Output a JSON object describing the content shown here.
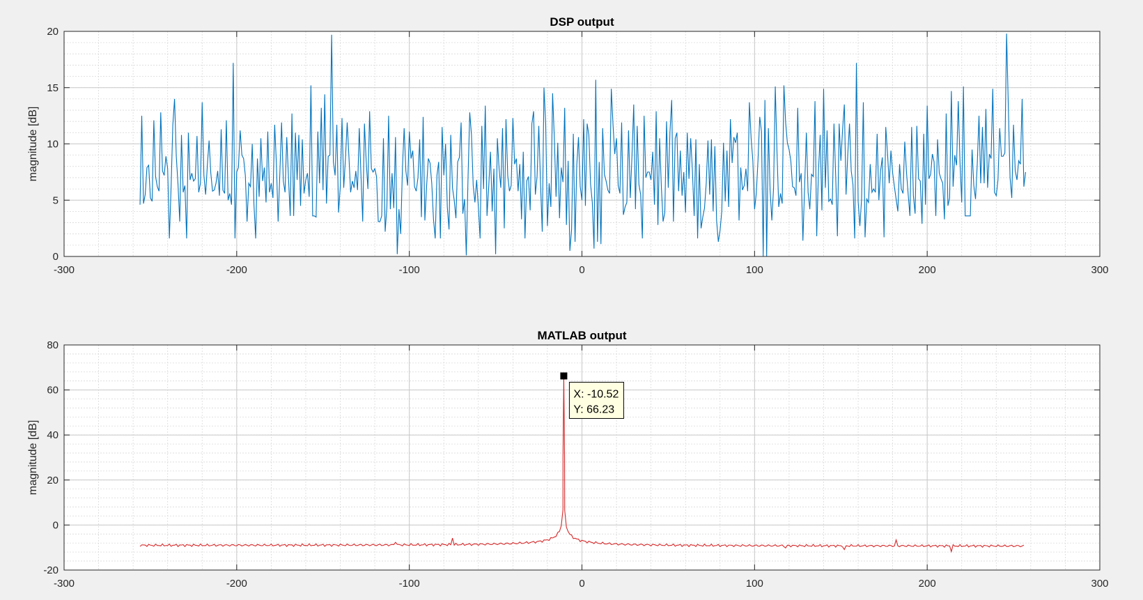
{
  "chart_data": [
    {
      "type": "line",
      "title": "DSP output",
      "xlabel": "",
      "ylabel": "magnitude [dB]",
      "xlim": [
        -300,
        300
      ],
      "ylim": [
        0,
        20
      ],
      "xticks": [
        -300,
        -200,
        -100,
        0,
        100,
        200,
        300
      ],
      "yticks": [
        0,
        5,
        10,
        15,
        20
      ],
      "xtick_labels": [
        "-300",
        "-200",
        "-100",
        "0",
        "100",
        "200",
        "300"
      ],
      "ytick_labels": [
        "0",
        "5",
        "10",
        "15",
        "20"
      ],
      "grid": true,
      "minor_grid": true,
      "line_color": "#0072bd",
      "series": [
        {
          "x_start": -256,
          "x_step": 1,
          "values": [
            4.6,
            12.5,
            4.7,
            5.5,
            7.9,
            8.1,
            5.2,
            4.9,
            12.1,
            7.1,
            6.2,
            5.8,
            12.8,
            7.6,
            7.2,
            8.9,
            7.8,
            1.6,
            6.2,
            11.7,
            14.0,
            8.9,
            6.4,
            3.1,
            10.8,
            5.7,
            6.3,
            1.6,
            11.0,
            6.8,
            7.4,
            6.7,
            6.9,
            10.7,
            5.7,
            6.5,
            13.7,
            7.2,
            5.5,
            8.1,
            10.3,
            7.4,
            5.8,
            5.9,
            6.5,
            7.6,
            5.4,
            11.3,
            5.9,
            5.6,
            12.1,
            5.0,
            5.6,
            4.6,
            17.2,
            1.6,
            7.5,
            7.9,
            11.2,
            9.0,
            8.7,
            7.2,
            3.1,
            6.5,
            6.2,
            10.0,
            4.6,
            1.6,
            8.7,
            5.3,
            10.5,
            6.7,
            7.9,
            4.8,
            11.1,
            5.7,
            6.5,
            5.2,
            11.7,
            8.2,
            3.1,
            7.4,
            11.9,
            6.7,
            5.7,
            10.6,
            7.0,
            3.6,
            12.7,
            3.6,
            11.0,
            6.8,
            10.8,
            4.5,
            10.4,
            5.6,
            6.8,
            7.4,
            5.3,
            15.2,
            3.6,
            3.6,
            3.5,
            11.1,
            6.5,
            13.2,
            5.9,
            14.4,
            4.7,
            8.9,
            9.0,
            19.7,
            8.4,
            7.2,
            11.7,
            3.9,
            6.2,
            12.3,
            6.1,
            8.7,
            11.9,
            8.9,
            5.7,
            6.7,
            6.1,
            7.6,
            5.9,
            11.4,
            7.2,
            3.1,
            11.8,
            8.5,
            6.0,
            12.9,
            7.8,
            7.5,
            7.8,
            7.1,
            3.1,
            3.1,
            3.6,
            10.5,
            2.2,
            4.4,
            12.5,
            4.2,
            7.4,
            4.3,
            10.6,
            0.2,
            4.2,
            2.0,
            7.8,
            11.4,
            7.6,
            6.3,
            11.1,
            8.7,
            9.4,
            6.2,
            5.8,
            7.0,
            10.4,
            3.5,
            12.4,
            3.2,
            6.2,
            8.7,
            8.3,
            6.5,
            3.3,
            1.6,
            7.2,
            8.4,
            1.6,
            11.5,
            7.2,
            10.0,
            4.4,
            2.4,
            10.8,
            6.1,
            5.0,
            3.4,
            8.4,
            8.8,
            11.9,
            3.8,
            5.1,
            0.1,
            6.9,
            12.8,
            10.8,
            6.3,
            4.8,
            6.8,
            4.4,
            1.6,
            11.6,
            6.0,
            13.4,
            3.6,
            6.2,
            9.3,
            4.0,
            7.8,
            0.2,
            10.5,
            7.8,
            6.1,
            11.4,
            2.5,
            12.2,
            7.2,
            5.8,
            6.3,
            12.3,
            8.2,
            8.7,
            5.8,
            8.2,
            3.3,
            9.3,
            1.6,
            6.7,
            7.1,
            4.1,
            11.8,
            12.9,
            5.5,
            7.1,
            11.6,
            6.5,
            2.2,
            15.0,
            11.8,
            2.7,
            6.5,
            4.4,
            14.5,
            10.5,
            5.3,
            10.1,
            3.4,
            7.9,
            6.6,
            13.2,
            2.8,
            8.5,
            0.5,
            2.4,
            10.9,
            1.3,
            8.1,
            10.6,
            6.2,
            5.0,
            12.2,
            4.5,
            11.8,
            10.8,
            6.4,
            4.8,
            0.7,
            15.7,
            1.3,
            8.4,
            1.1,
            11.4,
            7.3,
            6.7,
            5.9,
            5.6,
            14.9,
            11.7,
            9.1,
            10.5,
            6.3,
            5.6,
            11.9,
            3.7,
            4.4,
            4.8,
            11.2,
            5.2,
            9.0,
            13.5,
            4.2,
            11.6,
            6.4,
            5.5,
            1.6,
            12.5,
            7.0,
            7.5,
            7.5,
            6.8,
            9.3,
            4.6,
            12.9,
            2.8,
            10.5,
            6.2,
            3.1,
            3.9,
            12.0,
            6.1,
            11.1,
            13.9,
            3.1,
            10.5,
            11.0,
            5.8,
            9.4,
            5.4,
            7.5,
            3.9,
            11.0,
            6.9,
            10.5,
            7.6,
            3.6,
            10.4,
            1.6,
            8.2,
            2.5,
            3.5,
            4.3,
            6.5,
            10.3,
            5.5,
            10.4,
            4.0,
            9.8,
            3.2,
            1.3,
            2.3,
            4.0,
            10.1,
            4.9,
            9.4,
            4.4,
            12.2,
            8.3,
            10.6,
            10.1,
            11.0,
            3.2,
            7.9,
            5.9,
            6.3,
            7.8,
            5.8,
            13.7,
            10.5,
            8.5,
            4.2,
            5.6,
            8.6,
            12.4,
            11.1,
            0.0,
            13.9,
            0.0,
            11.4,
            5.9,
            3.2,
            6.1,
            15.1,
            9.2,
            4.4,
            5.6,
            4.7,
            15.2,
            11.9,
            10.1,
            9.5,
            8.5,
            6.2,
            6.1,
            5.4,
            13.2,
            6.6,
            7.4,
            1.4,
            6.2,
            11.0,
            5.7,
            4.2,
            7.3,
            7.1,
            13.8,
            1.8,
            7.5,
            10.8,
            4.1,
            14.9,
            6.1,
            11.2,
            4.9,
            5.1,
            4.6,
            11.8,
            7.1,
            1.8,
            11.8,
            8.5,
            11.3,
            13.5,
            5.5,
            9.1,
            11.8,
            7.6,
            6.4,
            1.6,
            17.2,
            4.9,
            2.7,
            5.1,
            13.7,
            1.7,
            5.1,
            4.8,
            8.2,
            5.7,
            6.0,
            5.7,
            10.9,
            5.0,
            7.6,
            8.8,
            1.7,
            11.5,
            9.2,
            6.5,
            9.4,
            7.4,
            6.2,
            5.1,
            4.0,
            8.2,
            6.0,
            5.6,
            10.2,
            7.5,
            5.5,
            3.6,
            11.5,
            5.4,
            3.8,
            11.6,
            6.9,
            6.7,
            2.9,
            10.9,
            4.6,
            13.4,
            6.9,
            7.3,
            9.1,
            8.4,
            3.6,
            10.4,
            7.4,
            6.9,
            6.5,
            3.3,
            12.7,
            4.5,
            5.2,
            14.7,
            6.2,
            9.0,
            8.1,
            13.8,
            8.4,
            4.8,
            15.1,
            3.6,
            3.6,
            3.6,
            3.6,
            9.5,
            6.3,
            5.1,
            8.2,
            12.5,
            6.5,
            11.5,
            6.5,
            13.1,
            6.1,
            9.1,
            8.7,
            14.9,
            5.7,
            5.4,
            6.8,
            11.4,
            8.9,
            8.9,
            9.2,
            19.8,
            13.3,
            7.0,
            5.2,
            11.7,
            7.6,
            6.8,
            8.5,
            8.2,
            14.0,
            6.2,
            7.5
          ]
        }
      ]
    },
    {
      "type": "line",
      "title": "MATLAB output",
      "xlabel": "",
      "ylabel": "magnitude [dB]",
      "xlim": [
        -300,
        300
      ],
      "ylim": [
        -20,
        80
      ],
      "xticks": [
        -300,
        -200,
        -100,
        0,
        100,
        200,
        300
      ],
      "yticks": [
        -20,
        0,
        20,
        40,
        60,
        80
      ],
      "xtick_labels": [
        "-300",
        "-200",
        "-100",
        "0",
        "100",
        "200",
        "300"
      ],
      "ytick_labels": [
        "-20",
        "0",
        "20",
        "40",
        "60",
        "80"
      ],
      "grid": true,
      "minor_grid": true,
      "line_color": "#d62728",
      "series": [
        {
          "shape": "peak",
          "x_range": [
            -256,
            256
          ],
          "peak_x": -10.52,
          "peak_y": 66.23,
          "floor_left": -9,
          "floor_right": -9.3,
          "dips": [
            {
              "x": -108,
              "y": -7.7
            },
            {
              "x": -75,
              "y": -5.8
            },
            {
              "x": 118,
              "y": -10.2
            },
            {
              "x": 152,
              "y": -10.9
            },
            {
              "x": 182,
              "y": -6.6
            },
            {
              "x": 214,
              "y": -11.8
            }
          ]
        }
      ],
      "datatip": {
        "x": -10.52,
        "y": 66.23,
        "x_text": "X: -10.52",
        "y_text": "Y: 66.23"
      }
    }
  ]
}
